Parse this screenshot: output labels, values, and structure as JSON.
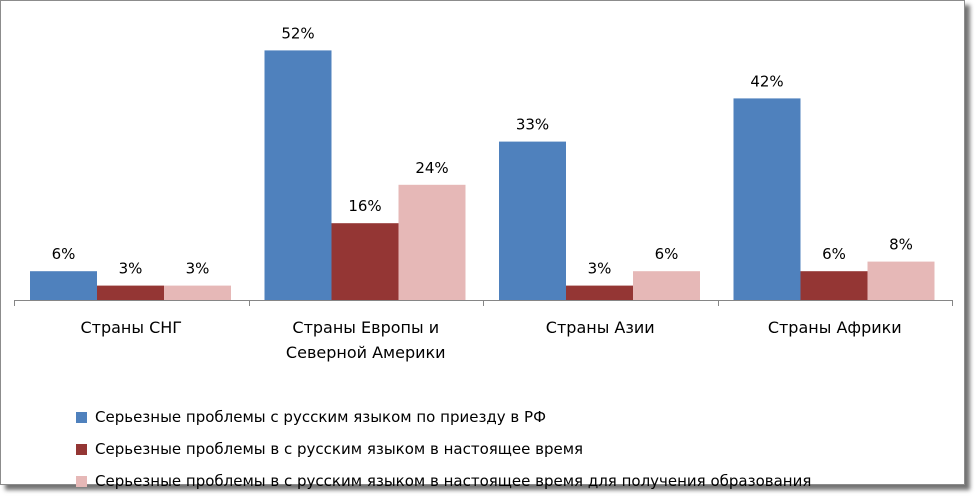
{
  "chart_data": {
    "type": "bar",
    "categories": [
      [
        "Страны СНГ"
      ],
      [
        "Страны Европы и",
        "Северной Америки"
      ],
      [
        "Страны Азии"
      ],
      [
        "Страны Африки"
      ]
    ],
    "series": [
      {
        "name": "Серьезные проблемы с русским языком по приезду в РФ",
        "color": "#4f81bd",
        "values": [
          6,
          52,
          33,
          42
        ],
        "labels": [
          "6%",
          "52%",
          "33%",
          "42%"
        ]
      },
      {
        "name": "Серьезные проблемы в с русским языком в настоящее время",
        "color": "#943634",
        "values": [
          3,
          16,
          3,
          6
        ],
        "labels": [
          "3%",
          "16%",
          "3%",
          "6%"
        ]
      },
      {
        "name": "Серьезные проблемы в с русским языком в настоящее время для получения образования",
        "color": "#e6b8b7",
        "values": [
          3,
          24,
          6,
          8
        ],
        "labels": [
          "3%",
          "24%",
          "6%",
          "8%"
        ]
      }
    ],
    "ylim": [
      0,
      55
    ],
    "grid": false,
    "legend_position": "bottom"
  }
}
